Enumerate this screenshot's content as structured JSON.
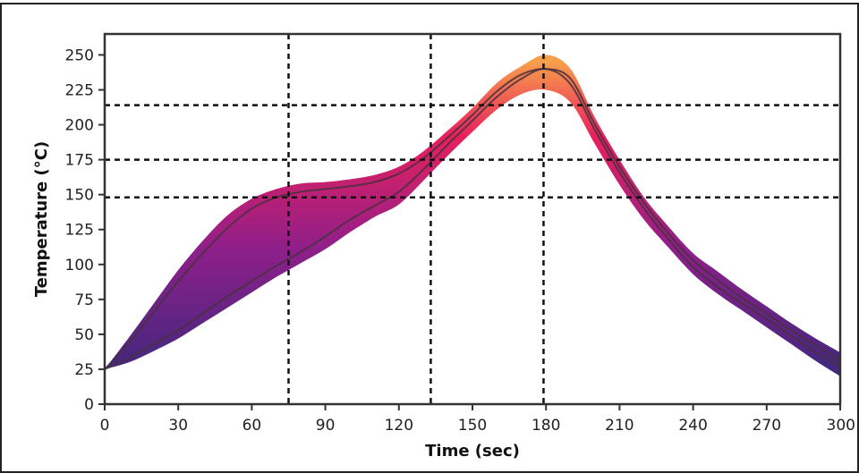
{
  "chart_data": {
    "type": "area",
    "title": "",
    "xlabel": "Time (sec)",
    "ylabel": "Temperature (°C)",
    "xlim": [
      0,
      300
    ],
    "ylim": [
      0,
      265
    ],
    "x_ticks": [
      0,
      30,
      60,
      90,
      120,
      150,
      180,
      210,
      240,
      270,
      300
    ],
    "y_ticks": [
      0,
      25,
      50,
      75,
      100,
      125,
      150,
      175,
      200,
      225,
      250
    ],
    "grid": false,
    "reference_lines": {
      "vertical_x": [
        75,
        133,
        179
      ],
      "horizontal_y": [
        148,
        175,
        214
      ]
    },
    "series": [
      {
        "role": "upper-profile",
        "x": [
          0,
          10,
          20,
          30,
          40,
          50,
          60,
          70,
          80,
          90,
          100,
          110,
          120,
          130,
          140,
          150,
          160,
          170,
          180,
          190,
          200,
          210,
          220,
          230,
          240,
          250,
          260,
          270,
          280,
          290,
          300
        ],
        "y": [
          25,
          48,
          72,
          96,
          117,
          135,
          147,
          154,
          158,
          159,
          161,
          164,
          170,
          181,
          196,
          212,
          230,
          242,
          250,
          240,
          205,
          175,
          148,
          127,
          108,
          95,
          82,
          70,
          58,
          47,
          37
        ]
      },
      {
        "role": "upper-center-line",
        "x": [
          0,
          10,
          20,
          30,
          40,
          50,
          60,
          70,
          80,
          90,
          100,
          110,
          120,
          130,
          140,
          150,
          160,
          170,
          180,
          190,
          200,
          210,
          220,
          230,
          240,
          250,
          260,
          270,
          280,
          290,
          300
        ],
        "y": [
          25,
          44,
          66,
          88,
          108,
          126,
          140,
          148,
          152,
          154,
          156,
          159,
          165,
          176,
          191,
          207,
          224,
          236,
          240,
          233,
          200,
          170,
          144,
          122,
          103,
          89,
          76,
          65,
          53,
          42,
          31
        ]
      },
      {
        "role": "lower-center-line",
        "x": [
          0,
          10,
          20,
          30,
          40,
          50,
          60,
          70,
          80,
          90,
          100,
          110,
          120,
          130,
          140,
          150,
          160,
          170,
          180,
          190,
          200,
          210,
          220,
          230,
          240,
          250,
          260,
          270,
          280,
          290,
          300
        ],
        "y": [
          25,
          33,
          43,
          53,
          65,
          77,
          88,
          99,
          109,
          120,
          132,
          142,
          152,
          168,
          186,
          203,
          220,
          233,
          240,
          229,
          196,
          166,
          140,
          118,
          98,
          84,
          72,
          61,
          49,
          37,
          27
        ]
      },
      {
        "role": "lower-profile",
        "x": [
          0,
          10,
          20,
          30,
          40,
          50,
          60,
          70,
          80,
          90,
          100,
          110,
          120,
          130,
          140,
          150,
          160,
          170,
          180,
          190,
          200,
          210,
          220,
          230,
          240,
          250,
          260,
          270,
          280,
          290,
          300
        ],
        "y": [
          25,
          30,
          38,
          47,
          58,
          69,
          80,
          91,
          101,
          111,
          123,
          134,
          143,
          160,
          178,
          195,
          211,
          222,
          225,
          216,
          186,
          157,
          132,
          112,
          93,
          79,
          67,
          55,
          43,
          31,
          20
        ]
      }
    ],
    "colors": {
      "band_low": "#2c2a7a",
      "band_mid": "#8e1f8a",
      "band_high": "#e8205d",
      "band_peak": "#f7a04a",
      "center_line": "#4a3040",
      "reference_line": "#111111"
    }
  }
}
